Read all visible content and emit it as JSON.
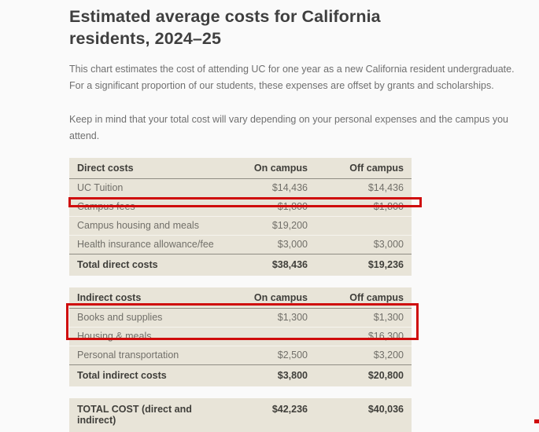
{
  "page": {
    "title": "Estimated average costs for California residents, 2024–25",
    "intro": "This chart estimates the cost of attending UC for one year as a new California resident undergraduate. For a significant proportion of our students, these expenses are offset by grants and scholarships.",
    "note": "Keep in mind that your total cost will vary depending on your personal expenses and the campus you attend."
  },
  "direct_table": {
    "title": "Direct costs",
    "col_on": "On campus",
    "col_off": "Off campus",
    "rows": [
      {
        "label": "UC Tuition",
        "on": "$14,436",
        "off": "$14,436"
      },
      {
        "label": "Campus fees",
        "on": "$1,800",
        "off": "$1,800"
      },
      {
        "label": "Campus housing and meals",
        "on": "$19,200",
        "off": ""
      },
      {
        "label": "Health insurance allowance/fee",
        "on": "$3,000",
        "off": "$3,000"
      }
    ],
    "total": {
      "label": "Total direct costs",
      "on": "$38,436",
      "off": "$19,236"
    }
  },
  "indirect_table": {
    "title": "Indirect costs",
    "col_on": "On campus",
    "col_off": "Off campus",
    "rows": [
      {
        "label": "Books and supplies",
        "on": "$1,300",
        "off": "$1,300"
      },
      {
        "label": "Housing & meals",
        "on": "",
        "off": "$16,300"
      },
      {
        "label": "Personal transportation",
        "on": "$2,500",
        "off": "$3,200"
      }
    ],
    "total": {
      "label": "Total indirect costs",
      "on": "$3,800",
      "off": "$20,800"
    }
  },
  "grand_total_table": {
    "total": {
      "label": "TOTAL COST (direct and indirect)",
      "on": "$42,236",
      "off": "$40,036"
    }
  },
  "annotations": {
    "highlight_color": "#cf0c0c",
    "struck_row": "Campus housing and meals",
    "boxed_rows": [
      "Housing & meals",
      "Personal transportation"
    ]
  }
}
